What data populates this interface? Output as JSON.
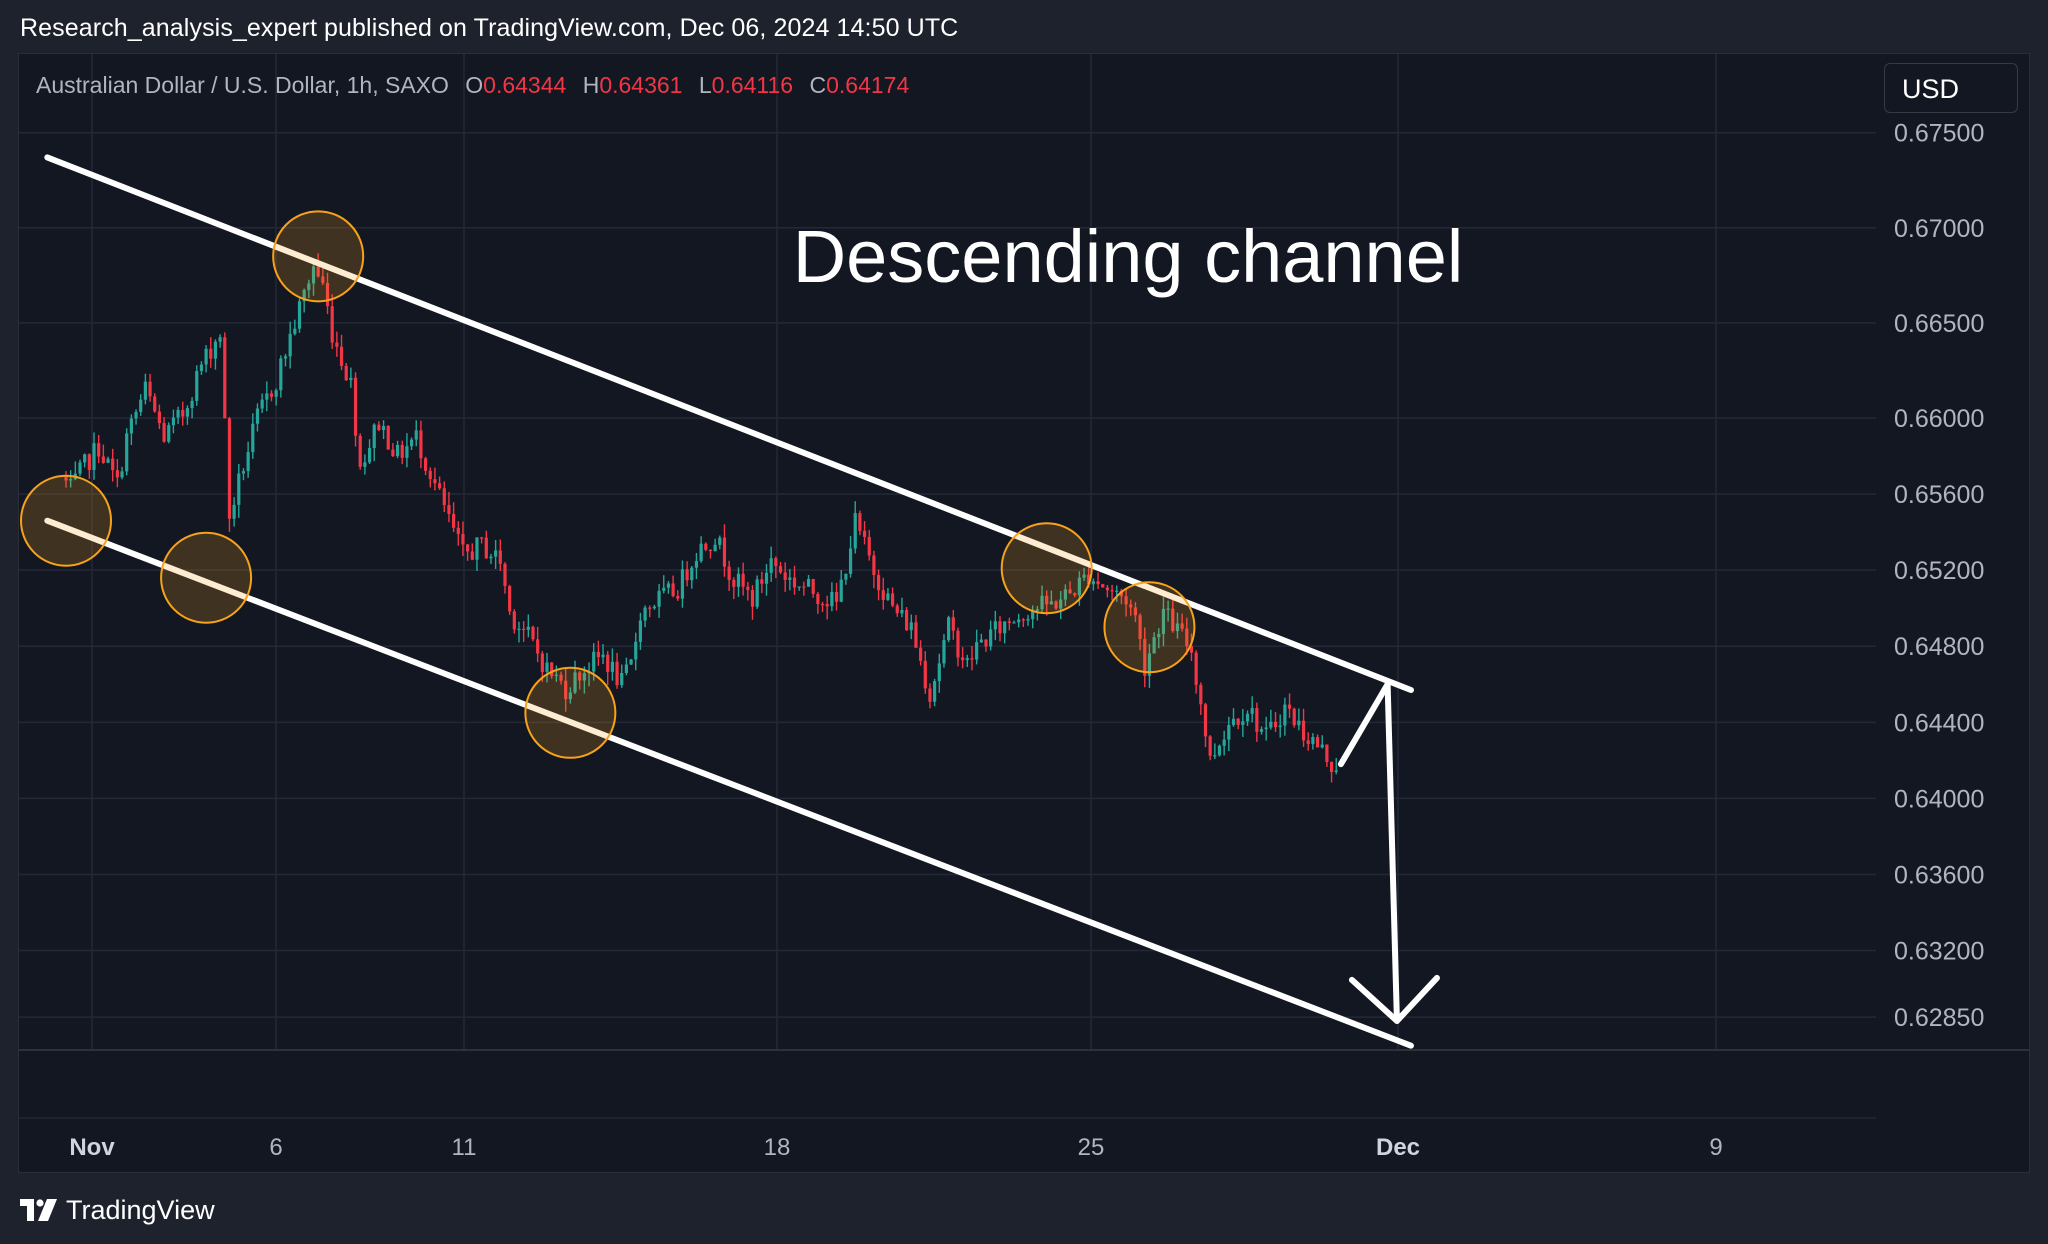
{
  "header": {
    "published_text": "Research_analysis_expert published on TradingView.com, Dec 06, 2024 14:50 UTC"
  },
  "legend": {
    "symbol_text": "Australian Dollar / U.S. Dollar, 1h, SAXO",
    "open_label": "O",
    "open_value": "0.64344",
    "high_label": "H",
    "high_value": "0.64361",
    "low_label": "L",
    "low_value": "0.64116",
    "close_label": "C",
    "close_value": "0.64174"
  },
  "currency_button": {
    "label": "USD"
  },
  "footer": {
    "brand": "TradingView",
    "logo_icon": "tradingview-logo-icon"
  },
  "colors": {
    "up": "#26a69a",
    "down": "#f23645",
    "marker": "#f7a21b",
    "annotation": "#ffffff",
    "background": "#131722"
  },
  "chart_data": {
    "type": "candlestick",
    "title": "",
    "annotation": "Descending channel",
    "y_axis": {
      "position": "right",
      "ticks": [
        "0.67500",
        "0.67000",
        "0.66500",
        "0.66000",
        "0.65600",
        "0.65200",
        "0.64800",
        "0.64400",
        "0.64000",
        "0.63600",
        "0.63200",
        "0.62850"
      ]
    },
    "x_axis": {
      "ticks": [
        {
          "label": "Nov",
          "bold": true
        },
        {
          "label": "6",
          "bold": false
        },
        {
          "label": "11",
          "bold": false
        },
        {
          "label": "18",
          "bold": false
        },
        {
          "label": "25",
          "bold": false
        },
        {
          "label": "Dec",
          "bold": true
        },
        {
          "label": "9",
          "bold": false
        }
      ]
    },
    "grid": true,
    "price_path_points": [
      [
        0,
        0.657
      ],
      [
        2,
        0.6562
      ],
      [
        5,
        0.6575
      ],
      [
        8,
        0.6585
      ],
      [
        12,
        0.6565
      ],
      [
        14,
        0.659
      ],
      [
        18,
        0.6615
      ],
      [
        22,
        0.659
      ],
      [
        26,
        0.6602
      ],
      [
        30,
        0.6628
      ],
      [
        34,
        0.6645
      ],
      [
        36,
        0.6548
      ],
      [
        39,
        0.6575
      ],
      [
        42,
        0.66
      ],
      [
        46,
        0.662
      ],
      [
        50,
        0.665
      ],
      [
        54,
        0.668
      ],
      [
        56,
        0.667
      ],
      [
        58,
        0.6645
      ],
      [
        62,
        0.6618
      ],
      [
        64,
        0.6575
      ],
      [
        68,
        0.6598
      ],
      [
        72,
        0.658
      ],
      [
        76,
        0.659
      ],
      [
        80,
        0.6565
      ],
      [
        84,
        0.654
      ],
      [
        86,
        0.6528
      ],
      [
        90,
        0.6533
      ],
      [
        94,
        0.6525
      ],
      [
        96,
        0.6498
      ],
      [
        100,
        0.6485
      ],
      [
        104,
        0.6468
      ],
      [
        108,
        0.6458
      ],
      [
        112,
        0.6468
      ],
      [
        116,
        0.6475
      ],
      [
        120,
        0.646
      ],
      [
        122,
        0.647
      ],
      [
        124,
        0.6498
      ],
      [
        128,
        0.6505
      ],
      [
        132,
        0.651
      ],
      [
        136,
        0.653
      ],
      [
        140,
        0.6538
      ],
      [
        144,
        0.6515
      ],
      [
        148,
        0.6505
      ],
      [
        152,
        0.6525
      ],
      [
        156,
        0.6515
      ],
      [
        160,
        0.651
      ],
      [
        164,
        0.6505
      ],
      [
        166,
        0.6502
      ],
      [
        170,
        0.6545
      ],
      [
        174,
        0.652
      ],
      [
        178,
        0.65
      ],
      [
        182,
        0.649
      ],
      [
        186,
        0.6455
      ],
      [
        190,
        0.649
      ],
      [
        194,
        0.647
      ],
      [
        196,
        0.648
      ],
      [
        200,
        0.6488
      ],
      [
        204,
        0.6495
      ],
      [
        208,
        0.65
      ],
      [
        212,
        0.6502
      ],
      [
        216,
        0.6508
      ],
      [
        220,
        0.6518
      ],
      [
        224,
        0.651
      ],
      [
        228,
        0.6505
      ],
      [
        230,
        0.6495
      ],
      [
        232,
        0.647
      ],
      [
        234,
        0.6485
      ],
      [
        236,
        0.6498
      ],
      [
        240,
        0.6485
      ],
      [
        242,
        0.6478
      ],
      [
        244,
        0.645
      ],
      [
        246,
        0.642
      ],
      [
        250,
        0.644
      ],
      [
        254,
        0.6448
      ],
      [
        258,
        0.6432
      ],
      [
        262,
        0.6448
      ],
      [
        266,
        0.6435
      ],
      [
        270,
        0.6425
      ],
      [
        272,
        0.6418
      ]
    ],
    "channel": {
      "upper_line": {
        "from": {
          "x": -4,
          "y": 0.6737
        },
        "to": {
          "x": 288,
          "y": 0.6457
        }
      },
      "lower_line": {
        "from": {
          "x": -4,
          "y": 0.6546
        },
        "to": {
          "x": 288,
          "y": 0.627
        }
      }
    },
    "touch_markers": [
      {
        "x": 0,
        "y": 0.6546
      },
      {
        "x": 30,
        "y": 0.6516
      },
      {
        "x": 54,
        "y": 0.6685
      },
      {
        "x": 108,
        "y": 0.6445
      },
      {
        "x": 210,
        "y": 0.6521
      },
      {
        "x": 232,
        "y": 0.649
      }
    ],
    "projection_arrows": [
      {
        "from": {
          "x": 273,
          "y": 0.6418
        },
        "to": {
          "x": 283,
          "y": 0.646
        }
      },
      {
        "from": {
          "x": 283,
          "y": 0.646
        },
        "to": {
          "x": 285,
          "y": 0.6283
        },
        "arrowhead": true
      }
    ]
  }
}
